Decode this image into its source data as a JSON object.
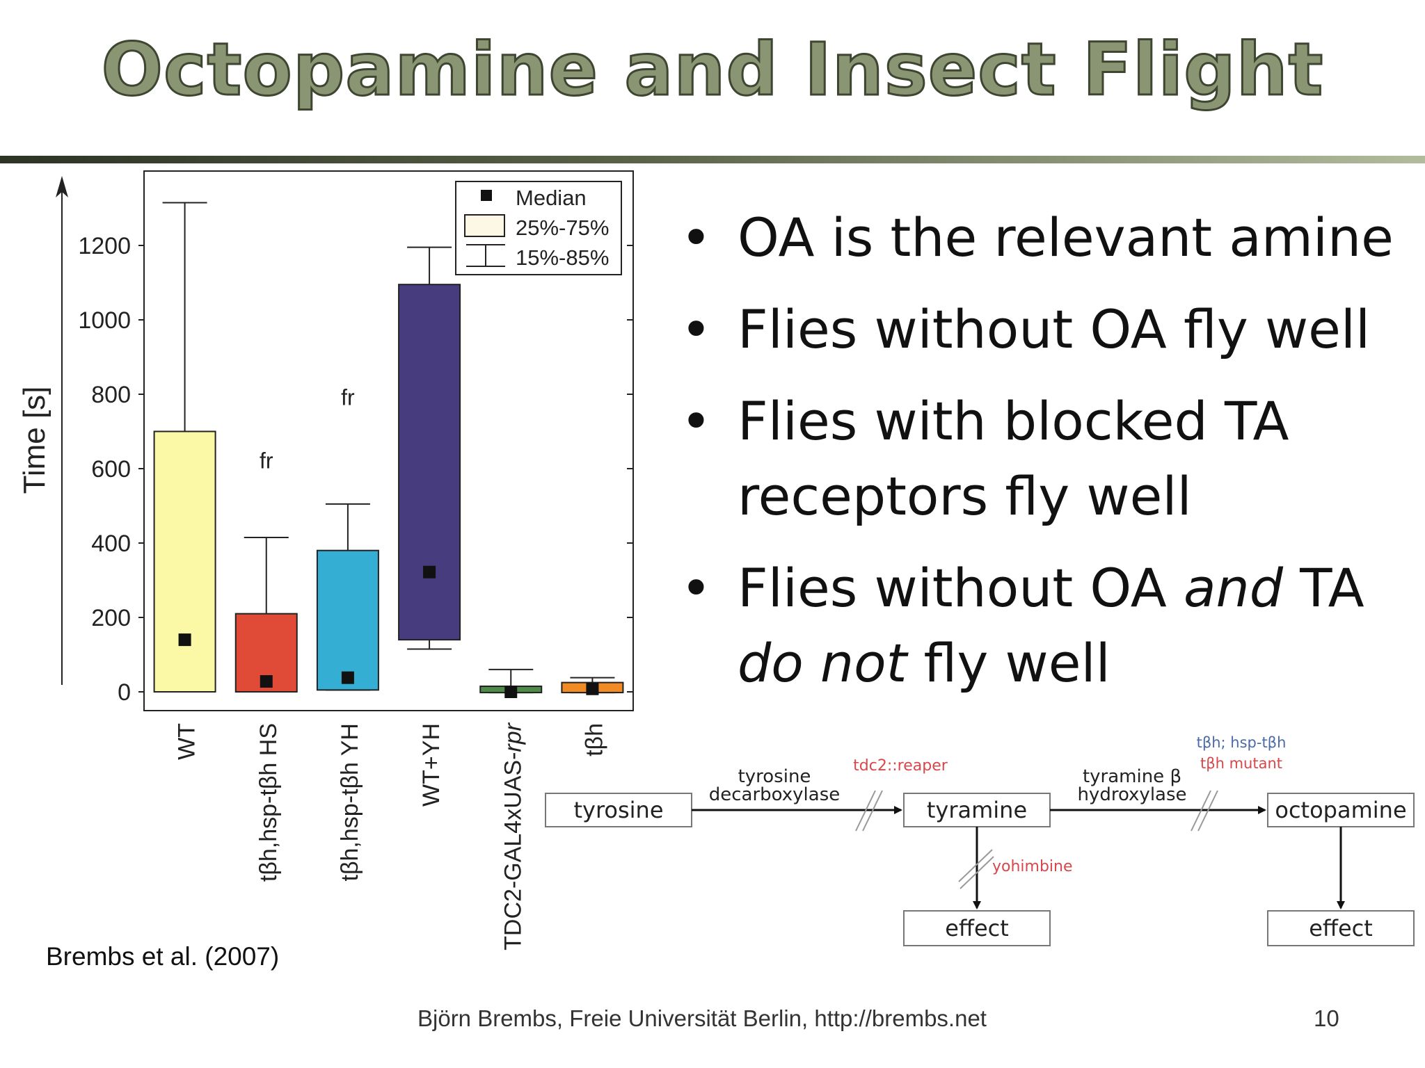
{
  "slide": {
    "title": "Octopamine and Insect Flight",
    "footer": "Björn Brembs, Freie Universität Berlin, http://brembs.net",
    "page_number": "10",
    "citation": "Brembs et al. (2007)"
  },
  "bullets": [
    {
      "pre": "OA is the relevant amine",
      "em1": "",
      "mid": "",
      "em2": "",
      "post": ""
    },
    {
      "pre": "Flies without OA fly well",
      "em1": "",
      "mid": "",
      "em2": "",
      "post": ""
    },
    {
      "pre": "Flies with blocked TA receptors fly well",
      "em1": "",
      "mid": "",
      "em2": "",
      "post": ""
    },
    {
      "pre": "Flies without OA ",
      "em1": "and",
      "mid": " TA ",
      "em2": "do not",
      "post": " fly well"
    }
  ],
  "chart_data": {
    "type": "box",
    "ylabel": "Time [s]",
    "ylim": [
      -50,
      1400
    ],
    "yticks": [
      "0",
      "200",
      "400",
      "600",
      "800",
      "1000",
      "1200"
    ],
    "ytick_values": [
      0,
      200,
      400,
      600,
      800,
      1000,
      1200
    ],
    "legend": {
      "position": "top-right",
      "median": "Median",
      "box": "25%-75%",
      "whisker": "15%-85%"
    },
    "categories": [
      {
        "pre": "WT",
        "em": ""
      },
      {
        "pre": "tβh,hsp-tβh HS",
        "em": ""
      },
      {
        "pre": "tβh,hsp-tβh YH",
        "em": ""
      },
      {
        "pre": "WT+YH",
        "em": ""
      },
      {
        "pre": "TDC2-GAL4xUAS-",
        "em": "rpr"
      },
      {
        "pre": "tβh",
        "em": ""
      }
    ],
    "boxes": [
      {
        "name": "WT",
        "q1": 0,
        "q3": 700,
        "p15": 0,
        "p85": 1315,
        "median": 140,
        "color": "#fbf8a6",
        "annotation": ""
      },
      {
        "name": "tβh,hsp-tβh HS",
        "q1": 0,
        "q3": 210,
        "p15": 0,
        "p85": 415,
        "median": 28,
        "color": "#e04b38",
        "annotation": "fr"
      },
      {
        "name": "tβh,hsp-tβh YH",
        "q1": 5,
        "q3": 380,
        "p15": 5,
        "p85": 505,
        "median": 38,
        "color": "#35aed4",
        "annotation": "fr"
      },
      {
        "name": "WT+YH",
        "q1": 140,
        "q3": 1095,
        "p15": 115,
        "p85": 1195,
        "median": 322,
        "color": "#473c7d",
        "annotation": ""
      },
      {
        "name": "TDC2-GAL4xUAS-rpr",
        "q1": -2,
        "q3": 15,
        "p15": -2,
        "p85": 60,
        "median": 0,
        "color": "#4e8a48",
        "annotation": ""
      },
      {
        "name": "tβh",
        "q1": -2,
        "q3": 25,
        "p15": -2,
        "p85": 38,
        "median": 8,
        "color": "#f08b26",
        "annotation": ""
      }
    ]
  },
  "pathway": {
    "nodes": {
      "tyrosine": "tyrosine",
      "tyramine": "tyramine",
      "octopamine": "octopamine",
      "effect1": "effect",
      "effect2": "effect"
    },
    "enzyme1": [
      "tyrosine",
      "decarboxylase"
    ],
    "enzyme2": [
      "tyramine β",
      "hydroxylase"
    ],
    "block1": "tdc2::reaper",
    "block2": "yohimbine",
    "block3": [
      "tβh; hsp-tβh",
      "tβh mutant"
    ],
    "colors": {
      "red": "#d9474a",
      "blue": "#4a6aa8"
    }
  }
}
